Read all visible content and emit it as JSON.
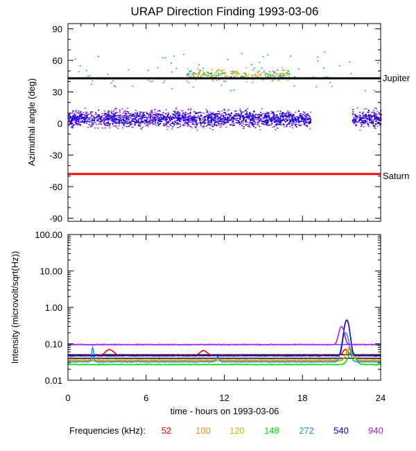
{
  "chart_data": [
    {
      "type": "scatter",
      "title": "URAP Direction Finding  1993-03-06",
      "ylabel": "Azimuthal angle (deg)",
      "xlim": [
        0,
        24
      ],
      "ylim": [
        -93,
        95
      ],
      "y_ticks": [
        "90",
        "60",
        "30",
        "0",
        "-30",
        "-60",
        "-90"
      ],
      "y_tick_values": [
        90,
        60,
        30,
        0,
        -30,
        -60,
        -90
      ],
      "reference_lines": [
        {
          "name": "Jupiter",
          "y": 43,
          "color": "#000000"
        },
        {
          "name": "Saturn",
          "y": -48,
          "color": "#ff0000"
        }
      ],
      "point_clusters": [
        {
          "series": "940",
          "x_range": [
            0,
            24
          ],
          "y_center": 5,
          "y_spread": 12,
          "density": "high",
          "gaps": [
            [
              18.6,
              21.8
            ]
          ]
        },
        {
          "series": "540",
          "x_range": [
            0,
            24
          ],
          "y_center": 5,
          "y_spread": 10,
          "density": "high",
          "gaps": [
            [
              18.6,
              21.8
            ]
          ]
        },
        {
          "series": "100/120/148/272",
          "x_range": [
            9,
            17
          ],
          "y_center": 47,
          "y_spread": 8,
          "density": "medium"
        },
        {
          "series": "272",
          "x_range": [
            0,
            24
          ],
          "y_center": 50,
          "y_spread": 20,
          "density": "sparse"
        }
      ]
    },
    {
      "type": "line",
      "ylabel": "Intensity (microvolt/sqrt(Hz))",
      "xlabel": "time - hours on 1993-03-06",
      "x_ticks": [
        "0",
        "6",
        "12",
        "18",
        "24"
      ],
      "x_tick_values": [
        0,
        6,
        12,
        18,
        24
      ],
      "xlim": [
        0,
        24
      ],
      "ylim": [
        0.01,
        100
      ],
      "y_scale": "log",
      "y_ticks": [
        "100.00",
        "10.00",
        "1.00",
        "0.10",
        "0.01"
      ],
      "y_tick_values": [
        100,
        10,
        1,
        0.1,
        0.01
      ],
      "reference_lines": [
        {
          "y": 0.095,
          "color": "#a020f0"
        },
        {
          "y": 0.05,
          "color": "#000000"
        },
        {
          "y": 0.04,
          "color": "#000000"
        }
      ],
      "series": [
        {
          "name": "52",
          "color": "#ff0000",
          "baseline": 0.048,
          "bumps": [
            {
              "x": 3.2,
              "peak": 0.07,
              "width": 0.8
            },
            {
              "x": 10.4,
              "peak": 0.065,
              "width": 0.7
            },
            {
              "x": 21.3,
              "peak": 0.07,
              "width": 0.5
            }
          ]
        },
        {
          "name": "100",
          "color": "#ff8c00",
          "baseline": 0.036,
          "bumps": [
            {
              "x": 21.6,
              "peak": 0.07,
              "width": 0.6
            }
          ]
        },
        {
          "name": "120",
          "color": "#e0b000",
          "baseline": 0.034,
          "bumps": [
            {
              "x": 21.6,
              "peak": 0.08,
              "width": 0.6
            }
          ]
        },
        {
          "name": "148",
          "color": "#00e000",
          "baseline": 0.027,
          "bumps": [
            {
              "x": 21.8,
              "peak": 0.06,
              "width": 0.7
            }
          ]
        },
        {
          "name": "272",
          "color": "#1e90ff",
          "baseline": 0.032,
          "bumps": [
            {
              "x": 1.9,
              "peak": 0.08,
              "width": 0.2
            },
            {
              "x": 11.5,
              "peak": 0.045,
              "width": 0.3
            },
            {
              "x": 21.3,
              "peak": 0.2,
              "width": 0.6
            }
          ]
        },
        {
          "name": "540",
          "color": "#0000dd",
          "baseline": 0.047,
          "bumps": [
            {
              "x": 21.4,
              "peak": 0.45,
              "width": 0.5
            }
          ]
        },
        {
          "name": "940",
          "color": "#a020f0",
          "baseline": 0.095,
          "bumps": [
            {
              "x": 21.0,
              "peak": 0.3,
              "width": 0.5
            }
          ]
        }
      ]
    }
  ],
  "legend": {
    "title": "Frequencies (kHz):",
    "placement": "bottom",
    "items": [
      {
        "label": "52",
        "color": "#ff0000"
      },
      {
        "label": "100",
        "color": "#ff8c00"
      },
      {
        "label": "120",
        "color": "#e0b000"
      },
      {
        "label": "148",
        "color": "#00e000"
      },
      {
        "label": "272",
        "color": "#1e90ff"
      },
      {
        "label": "540",
        "color": "#0000dd"
      },
      {
        "label": "940",
        "color": "#a020f0"
      }
    ]
  }
}
